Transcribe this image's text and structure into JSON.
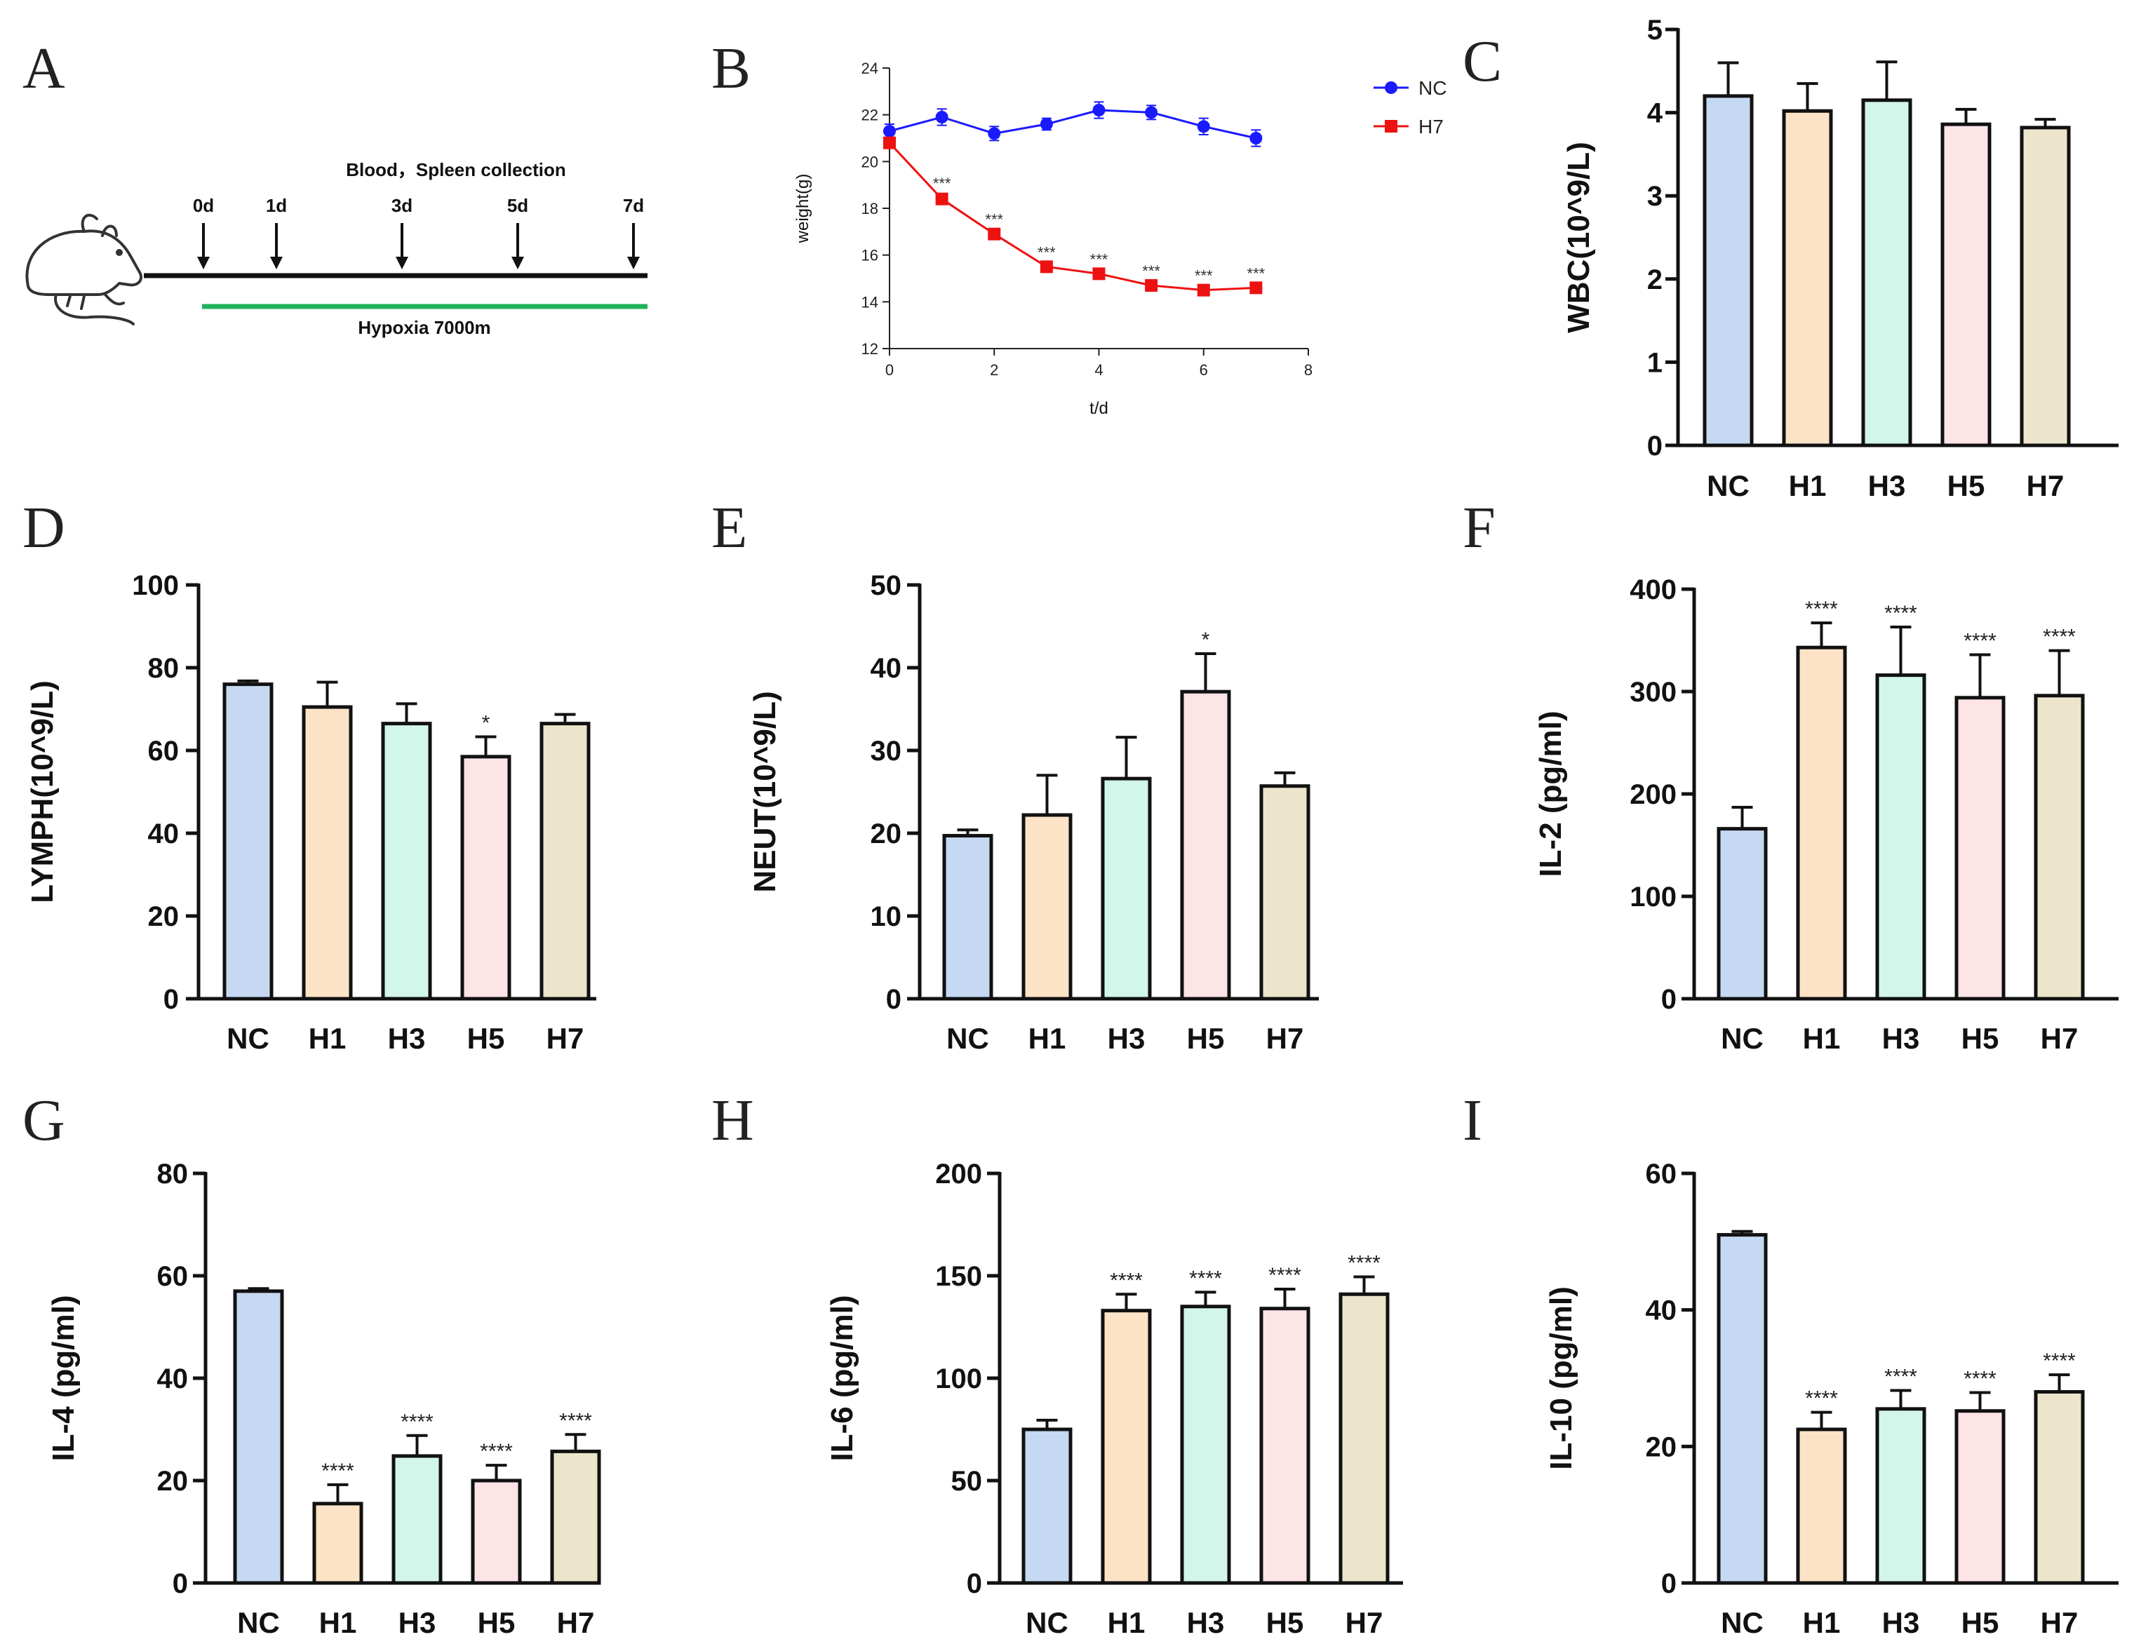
{
  "panels": {
    "A": "A",
    "B": "B",
    "C": "C",
    "D": "D",
    "E": "E",
    "F": "F",
    "G": "G",
    "H": "H",
    "I": "I"
  },
  "timeline": {
    "title": "Blood，Spleen collection",
    "days": [
      "0d",
      "1d",
      "3d",
      "5d",
      "7d"
    ],
    "condition": "Hypoxia  7000m",
    "icon": "mouse-icon",
    "line_color": "#1fb25a"
  },
  "bar_colors": [
    "#c6d9f3",
    "#fde3c6",
    "#d2f6e9",
    "#fde4e6",
    "#ece5cb"
  ],
  "chart_data": [
    {
      "id": "B",
      "type": "line",
      "title": "",
      "xlabel": "t/d",
      "ylabel": "weight(g)",
      "xlim": [
        0,
        8
      ],
      "ylim": [
        12,
        24
      ],
      "xticks": [
        "0",
        "2",
        "4",
        "6",
        "8"
      ],
      "yticks": [
        "12",
        "14",
        "16",
        "18",
        "20",
        "22",
        "24"
      ],
      "legend_position": "top-right",
      "series": [
        {
          "name": "NC",
          "color": "#1a1aff",
          "x": [
            0,
            1,
            2,
            3,
            4,
            5,
            6,
            7
          ],
          "values": [
            21.3,
            21.9,
            21.2,
            21.6,
            22.2,
            22.1,
            21.5,
            21.0
          ],
          "errors": [
            0.3,
            0.35,
            0.3,
            0.25,
            0.35,
            0.3,
            0.35,
            0.35
          ],
          "sig": [
            "",
            "",
            "",
            "",
            "",
            "",
            "",
            ""
          ]
        },
        {
          "name": "H7",
          "color": "#ee1111",
          "x": [
            0,
            1,
            2,
            3,
            4,
            5,
            6,
            7
          ],
          "values": [
            20.8,
            18.4,
            16.9,
            15.5,
            15.2,
            14.7,
            14.5,
            14.6
          ],
          "errors": [
            0.2,
            0.2,
            0.15,
            0.15,
            0.15,
            0.15,
            0.15,
            0.15
          ],
          "sig": [
            "",
            "***",
            "***",
            "***",
            "***",
            "***",
            "***",
            "***"
          ]
        }
      ]
    },
    {
      "id": "C",
      "type": "bar",
      "ylabel": "WBC(10^9/L)",
      "ylim": [
        0,
        5
      ],
      "yticks": [
        "0",
        "1",
        "2",
        "3",
        "4",
        "5"
      ],
      "categories": [
        "NC",
        "H1",
        "H3",
        "H5",
        "H7"
      ],
      "values": [
        4.2,
        4.02,
        4.15,
        3.86,
        3.82
      ],
      "errors": [
        0.4,
        0.33,
        0.46,
        0.18,
        0.1
      ],
      "sig": [
        "",
        "",
        "",
        "",
        ""
      ]
    },
    {
      "id": "D",
      "type": "bar",
      "ylabel": "LYMPH(10^9/L)",
      "ylim": [
        0,
        100
      ],
      "yticks": [
        "0",
        "20",
        "40",
        "60",
        "80",
        "100"
      ],
      "categories": [
        "NC",
        "H1",
        "H3",
        "H5",
        "H7"
      ],
      "values": [
        76,
        70.5,
        66.5,
        58.5,
        66.5
      ],
      "errors": [
        0.8,
        6,
        4.8,
        4.8,
        2.2
      ],
      "sig": [
        "",
        "",
        "",
        "*",
        ""
      ]
    },
    {
      "id": "E",
      "type": "bar",
      "ylabel": "NEUT(10^9/L)",
      "ylim": [
        0,
        50
      ],
      "yticks": [
        "0",
        "10",
        "20",
        "30",
        "40",
        "50"
      ],
      "categories": [
        "NC",
        "H1",
        "H3",
        "H5",
        "H7"
      ],
      "values": [
        19.7,
        22.2,
        26.6,
        37.1,
        25.7
      ],
      "errors": [
        0.7,
        4.8,
        5,
        4.6,
        1.6
      ],
      "sig": [
        "",
        "",
        "",
        "*",
        ""
      ]
    },
    {
      "id": "F",
      "type": "bar",
      "ylabel": "IL-2 (pg/ml)",
      "ylim": [
        0,
        400
      ],
      "yticks": [
        "0",
        "100",
        "200",
        "300",
        "400"
      ],
      "categories": [
        "NC",
        "H1",
        "H3",
        "H5",
        "H7"
      ],
      "values": [
        166,
        343,
        316,
        294,
        296
      ],
      "errors": [
        21,
        24,
        47,
        42,
        44
      ],
      "sig": [
        "",
        "****",
        "****",
        "****",
        "****"
      ]
    },
    {
      "id": "G",
      "type": "bar",
      "ylabel": "IL-4 (pg/ml)",
      "ylim": [
        0,
        80
      ],
      "yticks": [
        "0",
        "20",
        "40",
        "60",
        "80"
      ],
      "categories": [
        "NC",
        "H1",
        "H3",
        "H5",
        "H7"
      ],
      "values": [
        57,
        15.5,
        24.8,
        20,
        25.7
      ],
      "errors": [
        0.5,
        3.7,
        4,
        3,
        3.3
      ],
      "sig": [
        "",
        "****",
        "****",
        "****",
        "****"
      ]
    },
    {
      "id": "H",
      "type": "bar",
      "ylabel": "IL-6 (pg/ml)",
      "ylim": [
        0,
        200
      ],
      "yticks": [
        "0",
        "50",
        "100",
        "150",
        "200"
      ],
      "categories": [
        "NC",
        "H1",
        "H3",
        "H5",
        "H7"
      ],
      "values": [
        75,
        133,
        135,
        134,
        141
      ],
      "errors": [
        4.5,
        8,
        7,
        9.5,
        8.5
      ],
      "sig": [
        "",
        "****",
        "****",
        "****",
        "****"
      ]
    },
    {
      "id": "I",
      "type": "bar",
      "ylabel": "IL-10 (pg/ml)",
      "ylim": [
        0,
        60
      ],
      "yticks": [
        "0",
        "20",
        "40",
        "60"
      ],
      "categories": [
        "NC",
        "H1",
        "H3",
        "H5",
        "H7"
      ],
      "values": [
        51,
        22.5,
        25.5,
        25.2,
        28
      ],
      "errors": [
        0.5,
        2.5,
        2.7,
        2.7,
        2.5
      ],
      "sig": [
        "",
        "****",
        "****",
        "****",
        "****"
      ]
    }
  ]
}
